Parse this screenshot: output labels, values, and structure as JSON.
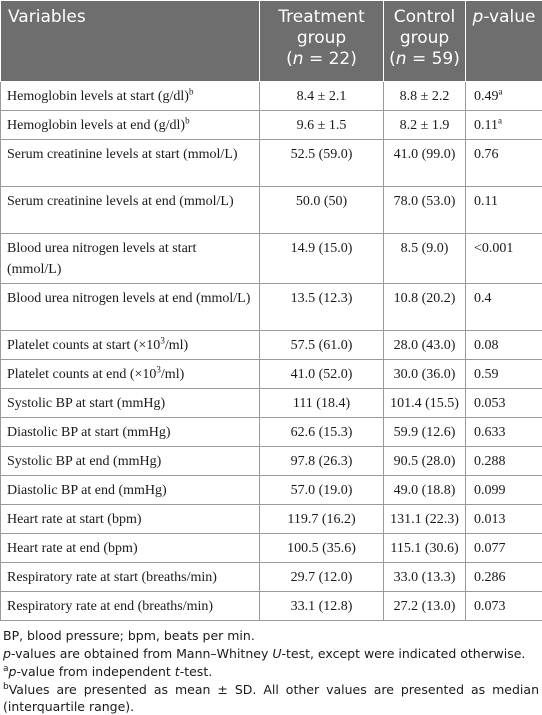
{
  "header": {
    "variables": "Variables",
    "treatment_line1": "Treatment",
    "treatment_line2": "group",
    "treatment_n_open": "(",
    "treatment_n_var": "n",
    "treatment_n_rest": " = 22)",
    "control_line1": "Control",
    "control_line2": "group",
    "control_n_open": "(",
    "control_n_var": "n",
    "control_n_rest": " = 59)",
    "pvalue_var": "p",
    "pvalue_rest": "-value"
  },
  "rows": [
    {
      "label": "Hemoglobin levels at start (g/dl)",
      "label_sup": "b",
      "treatment": "8.4 ± 2.1",
      "control": "8.8 ± 2.2",
      "p": "0.49",
      "p_sup": "a"
    },
    {
      "label": "Hemoglobin levels at end (g/dl)",
      "label_sup": "b",
      "treatment": "9.6 ± 1.5",
      "control": "8.2 ± 1.9",
      "p": "0.11",
      "p_sup": "a"
    },
    {
      "label": "Serum creatinine levels at start (mmol/L)",
      "treatment": "52.5 (59.0)",
      "control": "41.0 (99.0)",
      "p": "0.76"
    },
    {
      "label": "Serum creatinine levels at end (mmol/L)",
      "treatment": "50.0 (50)",
      "control": "78.0 (53.0)",
      "p": "0.11"
    },
    {
      "label": "Blood urea nitrogen levels at start (mmol/L)",
      "treatment": "14.9 (15.0)",
      "control": "8.5 (9.0)",
      "p": "<0.001"
    },
    {
      "label": "Blood urea nitrogen levels at end (mmol/L)",
      "treatment": "13.5 (12.3)",
      "control": "10.8 (20.2)",
      "p": "0.4"
    },
    {
      "label": "Platelet counts at start (×10",
      "label_sup": "3",
      "label_after": "/ml)",
      "treatment": "57.5 (61.0)",
      "control": "28.0 (43.0)",
      "p": "0.08"
    },
    {
      "label": "Platelet counts at end (×10",
      "label_sup": "3",
      "label_after": "/ml)",
      "treatment": "41.0 (52.0)",
      "control": "30.0 (36.0)",
      "p": "0.59"
    },
    {
      "label": "Systolic BP at start (mmHg)",
      "treatment": "111 (18.4)",
      "control": "101.4 (15.5)",
      "p": "0.053"
    },
    {
      "label": "Diastolic BP at start (mmHg)",
      "treatment": "62.6 (15.3)",
      "control": "59.9 (12.6)",
      "p": "0.633"
    },
    {
      "label": "Systolic BP at end (mmHg)",
      "treatment": "97.8 (26.3)",
      "control": "90.5 (28.0)",
      "p": "0.288"
    },
    {
      "label": "Diastolic BP at end (mmHg)",
      "treatment": "57.0 (19.0)",
      "control": "49.0 (18.8)",
      "p": "0.099"
    },
    {
      "label": "Heart rate at start (bpm)",
      "treatment": "119.7 (16.2)",
      "control": "131.1 (22.3)",
      "p": "0.013"
    },
    {
      "label": "Heart rate at end (bpm)",
      "treatment": "100.5 (35.6)",
      "control": "115.1 (30.6)",
      "p": "0.077"
    },
    {
      "label": "Respiratory rate at start (breaths/min)",
      "treatment": "29.7 (12.0)",
      "control": "33.0 (13.3)",
      "p": "0.286"
    },
    {
      "label": "Respiratory rate at end (breaths/min)",
      "treatment": "33.1 (12.8)",
      "control": "27.2 (13.0)",
      "p": "0.073"
    }
  ],
  "footnotes": {
    "abbrev": "BP, blood pressure; bpm, beats per min.",
    "note1_p": "p",
    "note1_mid": "-values are obtained from Mann–Whitney ",
    "note1_u": "U",
    "note1_end": "-test, except were indicated otherwise.",
    "note2_sup": "a",
    "note2_p": "p",
    "note2_end": "-value from independent ",
    "note2_t": "t",
    "note2_tail": "-test.",
    "note3_sup": "b",
    "note3_text": "Values are presented as mean ± SD. All other values are presented as median (interquartile range)."
  }
}
